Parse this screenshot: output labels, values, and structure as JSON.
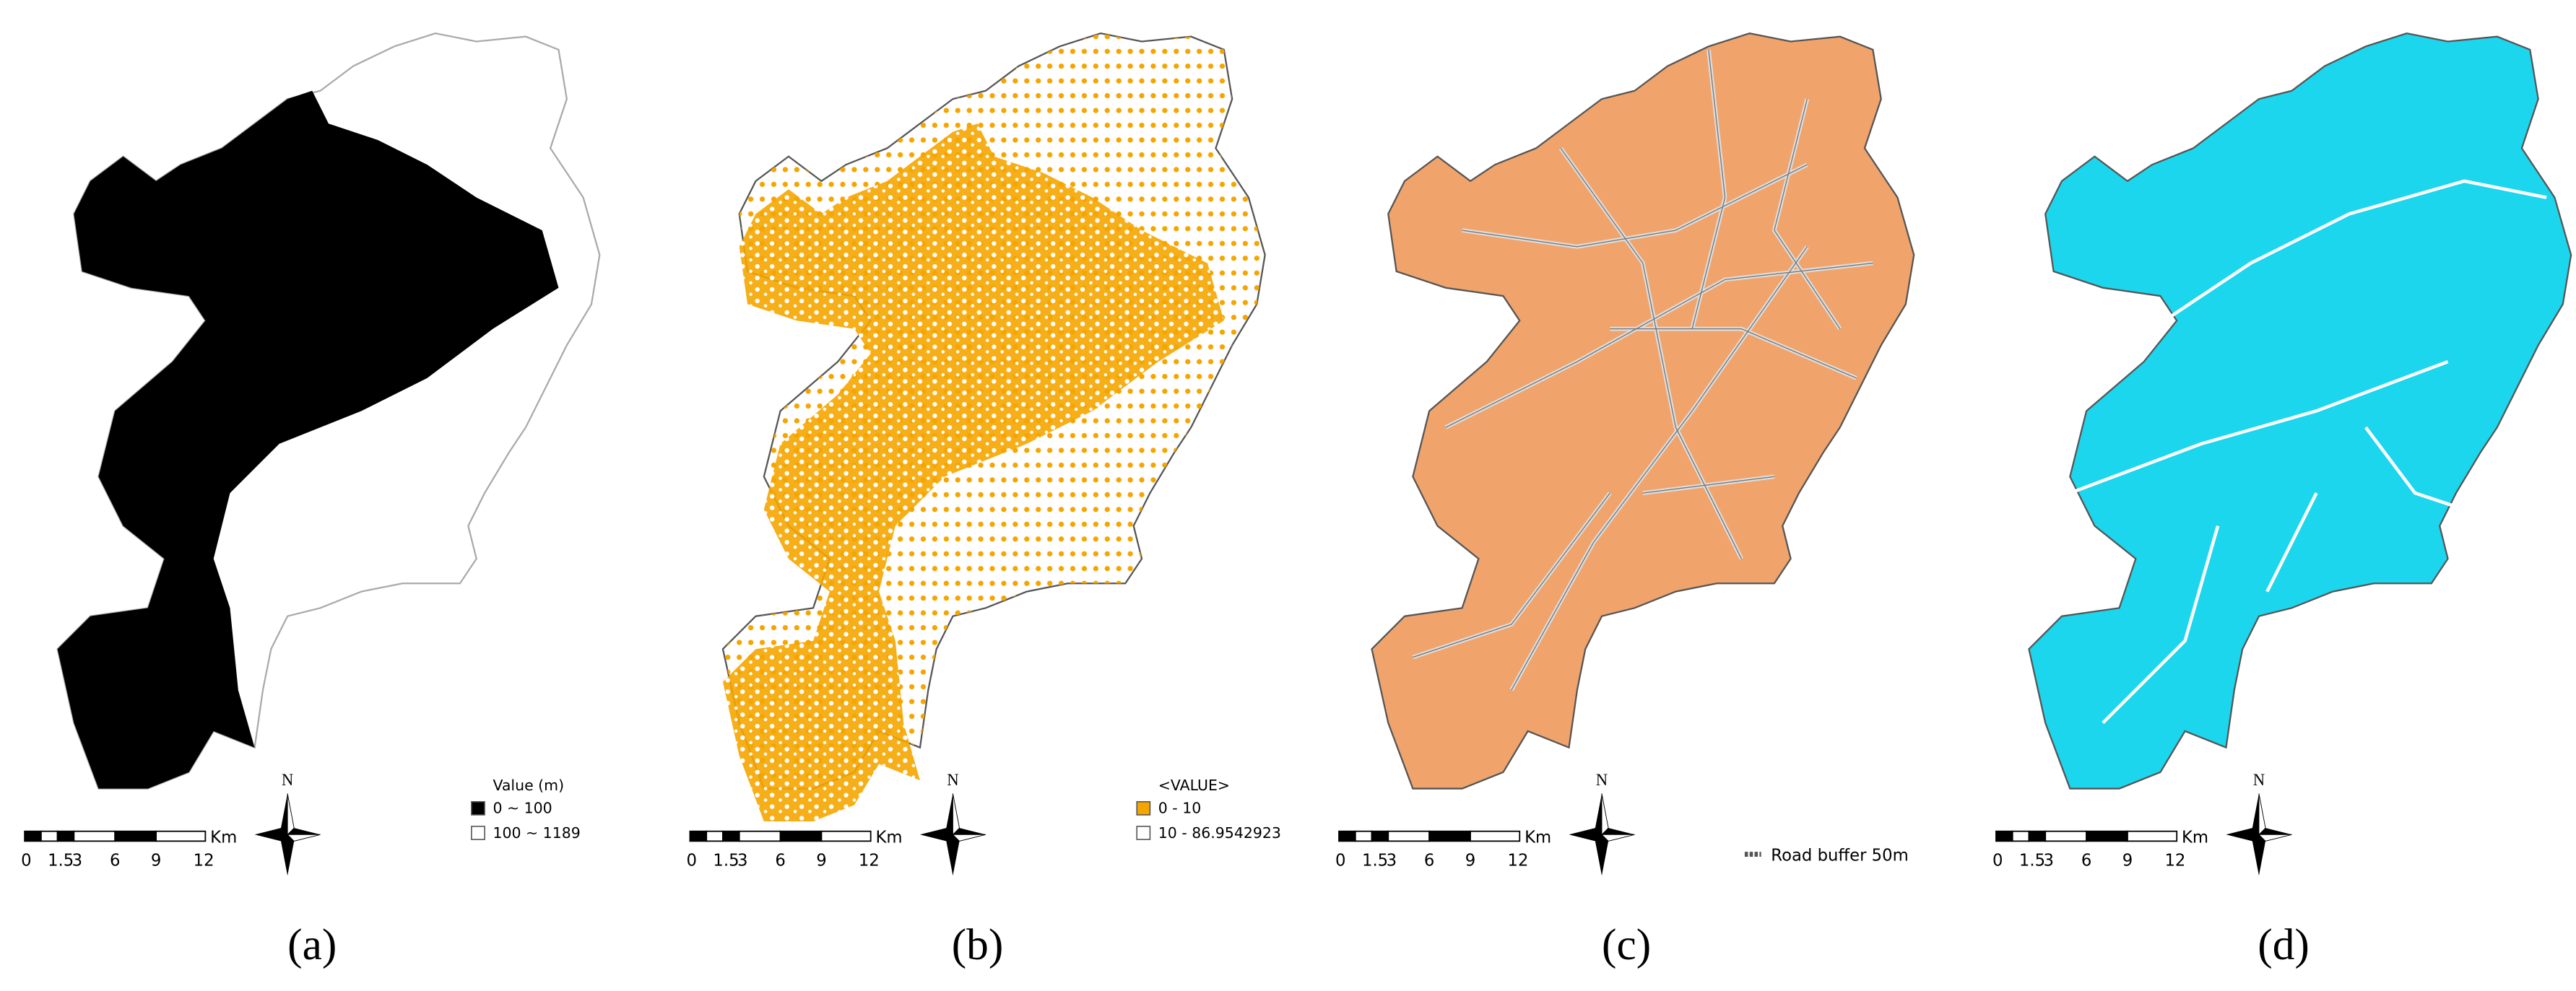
{
  "panels": [
    {
      "label": "(a)",
      "north": "N",
      "scale": {
        "ticks": [
          "0",
          "1.5",
          "3",
          "6",
          "9",
          "12"
        ],
        "unit": "Km"
      },
      "legend": {
        "title": "Value (m)",
        "items": [
          "0 ~ 100",
          "100 ~ 1189"
        ]
      }
    },
    {
      "label": "(b)",
      "north": "N",
      "scale": {
        "ticks": [
          "0",
          "1.5",
          "3",
          "6",
          "9",
          "12"
        ],
        "unit": "Km"
      },
      "legend": {
        "title": "<VALUE>",
        "items": [
          "0 - 10",
          "10 - 86.9542923"
        ]
      }
    },
    {
      "label": "(c)",
      "north": "N",
      "scale": {
        "ticks": [
          "0",
          "1.5",
          "3",
          "6",
          "9",
          "12"
        ],
        "unit": "Km"
      },
      "legend": {
        "items": [
          "Road buffer 50m"
        ]
      }
    },
    {
      "label": "(d)",
      "north": "N",
      "scale": {
        "ticks": [
          "0",
          "1.5",
          "3",
          "6",
          "9",
          "12"
        ],
        "unit": "Km"
      }
    }
  ]
}
